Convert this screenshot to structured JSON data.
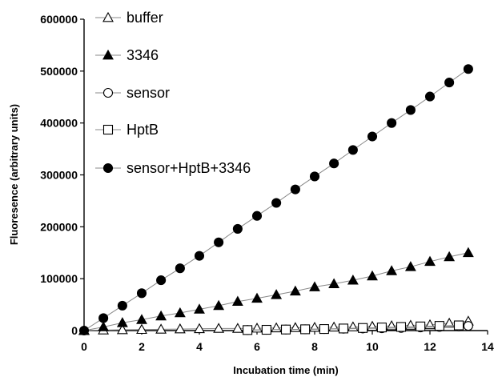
{
  "chart_data": {
    "type": "scatter",
    "xlabel": "Incubation time (min)",
    "ylabel": "Fluoresence (arbitrary units)",
    "xlim": [
      0,
      14
    ],
    "ylim": [
      0,
      600000
    ],
    "x_ticks": [
      "0",
      "2",
      "4",
      "6",
      "8",
      "10",
      "12",
      "14"
    ],
    "y_ticks": [
      "0",
      "100000",
      "200000",
      "300000",
      "400000",
      "500000",
      "600000"
    ],
    "grid": false,
    "legend_position": "top-left",
    "series": [
      {
        "name": "buffer",
        "marker": "triangle-open",
        "x": [
          0,
          0.67,
          1.33,
          2.0,
          2.67,
          3.33,
          4.0,
          4.67,
          5.33,
          6.0,
          6.67,
          7.33,
          8.0,
          8.67,
          9.33,
          10.0,
          10.67,
          11.33,
          12.0,
          12.67,
          13.33
        ],
        "y": [
          0,
          1000,
          1500,
          2000,
          2500,
          3000,
          3500,
          4000,
          4000,
          4500,
          5000,
          5500,
          6000,
          6500,
          7000,
          8000,
          9000,
          10000,
          11000,
          14000,
          18000
        ]
      },
      {
        "name": "3346",
        "marker": "triangle-filled",
        "x": [
          0,
          0.67,
          1.33,
          2.0,
          2.67,
          3.33,
          4.0,
          4.67,
          5.33,
          6.0,
          6.67,
          7.33,
          8.0,
          8.67,
          9.33,
          10.0,
          10.67,
          11.33,
          12.0,
          12.67,
          13.33
        ],
        "y": [
          0,
          7000,
          15000,
          21000,
          28000,
          34000,
          41000,
          48000,
          56000,
          62000,
          69000,
          76000,
          84000,
          90000,
          97000,
          105000,
          115000,
          123000,
          133000,
          142000,
          150000
        ]
      },
      {
        "name": "sensor",
        "marker": "circle-open",
        "x": [
          5.67,
          6.33,
          7.0,
          7.67,
          8.33,
          9.0,
          9.67,
          10.33,
          11.0,
          11.67,
          12.33,
          13.0,
          13.33
        ],
        "y": [
          1000,
          1500,
          2000,
          2500,
          3000,
          3500,
          4000,
          4500,
          5000,
          6000,
          7000,
          8000,
          9000
        ]
      },
      {
        "name": "HptB",
        "marker": "square-open",
        "x": [
          5.67,
          6.33,
          7.0,
          7.67,
          8.33,
          9.0,
          9.67,
          10.33,
          11.0,
          11.67,
          12.33,
          13.0
        ],
        "y": [
          1000,
          1500,
          2000,
          2500,
          3000,
          4000,
          5000,
          6000,
          7000,
          8000,
          9000,
          10000
        ]
      },
      {
        "name": "sensor+HptB+3346",
        "marker": "circle-filled",
        "x": [
          0,
          0.67,
          1.33,
          2.0,
          2.67,
          3.33,
          4.0,
          4.67,
          5.33,
          6.0,
          6.67,
          7.33,
          8.0,
          8.67,
          9.33,
          10.0,
          10.67,
          11.33,
          12.0,
          12.67,
          13.33
        ],
        "y": [
          0,
          24000,
          48000,
          72000,
          97000,
          120000,
          144000,
          170000,
          196000,
          221000,
          246000,
          272000,
          297000,
          322000,
          348000,
          374000,
          400000,
          425000,
          451000,
          478000,
          504000
        ]
      }
    ]
  }
}
